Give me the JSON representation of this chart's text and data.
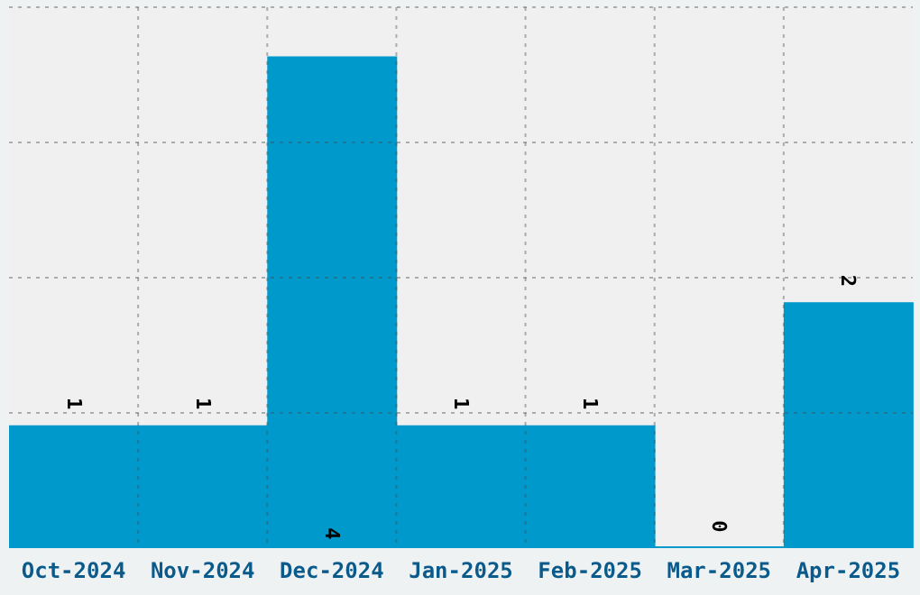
{
  "chart_data": {
    "type": "bar",
    "categories": [
      "Oct-2024",
      "Nov-2024",
      "Dec-2024",
      "Jan-2025",
      "Feb-2025",
      "Mar-2025",
      "Apr-2025"
    ],
    "values": [
      1,
      1,
      4,
      1,
      1,
      0,
      2
    ],
    "color": "#0099cc",
    "ylim": [
      0,
      4.4
    ],
    "tick_labels": "x",
    "grid": true,
    "data_labels": true
  }
}
